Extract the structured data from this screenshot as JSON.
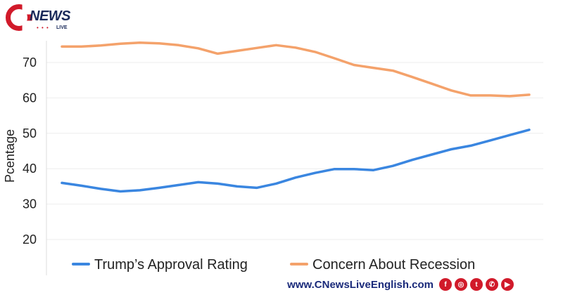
{
  "brand": {
    "logo_text": "NEWS",
    "logo_sub": "LIVE",
    "logo_dots": "• • •",
    "website": "www.CNewsLiveEnglish.com",
    "accent_color": "#d11a2a",
    "navy_color": "#1a2a7a"
  },
  "social_icons": [
    {
      "name": "facebook-icon",
      "glyph": "f"
    },
    {
      "name": "instagram-icon",
      "glyph": "◎"
    },
    {
      "name": "twitter-icon",
      "glyph": "t"
    },
    {
      "name": "whatsapp-icon",
      "glyph": "✆"
    },
    {
      "name": "youtube-icon",
      "glyph": "▶"
    }
  ],
  "chart_data": {
    "type": "line",
    "title": "",
    "xlabel": "",
    "ylabel": "Pcentage",
    "ylim": [
      16,
      75
    ],
    "yticks": [
      20,
      30,
      40,
      50,
      60,
      70
    ],
    "x": [
      0,
      1,
      2,
      3,
      4,
      5,
      6,
      7,
      8,
      9,
      10,
      11,
      12,
      13,
      14,
      15,
      16,
      17,
      18,
      19,
      20,
      21,
      22,
      23,
      24
    ],
    "grid": true,
    "legend_position": "bottom",
    "series": [
      {
        "name": "Trump’s Approval Rating",
        "color": "#3a86e0",
        "values": [
          36,
          35.2,
          34.3,
          33.6,
          33.9,
          34.6,
          35.4,
          36.2,
          35.8,
          35.0,
          34.6,
          35.8,
          37.5,
          38.8,
          39.9,
          39.9,
          39.6,
          40.8,
          42.5,
          44.0,
          45.5,
          46.5,
          48.0,
          49.5,
          51.0
        ]
      },
      {
        "name": "Concern About Recession",
        "color": "#f4a26b",
        "values": [
          74.5,
          74.5,
          74.8,
          75.3,
          75.6,
          75.4,
          74.9,
          74.0,
          72.5,
          73.3,
          74.1,
          74.9,
          74.2,
          73.0,
          71.2,
          69.3,
          68.5,
          67.7,
          65.9,
          64.0,
          62.1,
          60.7,
          60.7,
          60.5,
          60.9
        ]
      }
    ]
  }
}
